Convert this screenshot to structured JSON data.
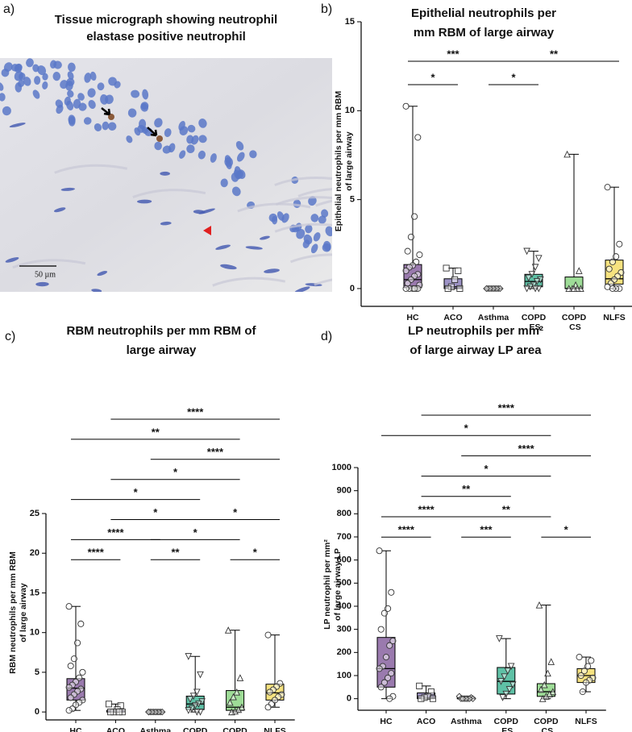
{
  "micrograph": {
    "label": "a)",
    "title": [
      "Tissue micrograph showing neutrophil",
      "elastase positive neutrophil"
    ],
    "scale_label": "50 µm"
  },
  "chart_data": [
    {
      "type": "box",
      "label": "b)",
      "title": [
        "Epithelial neutrophils per",
        "mm RBM of large airway"
      ],
      "ylabel": [
        "Epithelial neutrophils per mm RBM",
        "of large airway"
      ],
      "categories": [
        "HC",
        "ACO",
        "Asthma",
        "COPD ES",
        "COPD CS",
        "NLFS"
      ],
      "colors": [
        "#9a7aae",
        "#9d93c6",
        "#b0b0b0",
        "#5fc1a6",
        "#9edc97",
        "#f6e27f"
      ],
      "markers": [
        "circle",
        "square",
        "diamond",
        "triangle-down",
        "triangle",
        "circle"
      ],
      "ylim": [
        -1,
        15
      ],
      "yticks": [
        0,
        5,
        10,
        15
      ],
      "boxes": [
        {
          "min": 0,
          "q1": 0.05,
          "median": 0.5,
          "q3": 1.35,
          "max": 10.25,
          "points": [
            10.25,
            8.5,
            4.05,
            2.9,
            2.1,
            1.9,
            1.5,
            1.3,
            1.2,
            1.0,
            0.8,
            0.7,
            0.5,
            0.3,
            0.2,
            0,
            0,
            0,
            0,
            0,
            0
          ]
        },
        {
          "min": 0,
          "q1": 0,
          "median": 0.1,
          "q3": 0.55,
          "max": 1.15,
          "points": [
            1.15,
            1.0,
            0.5,
            0.1,
            0,
            0
          ]
        },
        {
          "min": 0,
          "q1": 0,
          "median": 0,
          "q3": 0,
          "max": 0,
          "points": [
            0,
            0,
            0,
            0,
            0,
            0,
            0,
            0,
            0,
            0
          ]
        },
        {
          "min": 0,
          "q1": 0.1,
          "median": 0.4,
          "q3": 0.8,
          "max": 2.1,
          "points": [
            2.1,
            1.7,
            1.2,
            0.8,
            0.6,
            0.5,
            0.4,
            0.2,
            0.1,
            0,
            0,
            0
          ]
        },
        {
          "min": 0,
          "q1": 0,
          "median": 0,
          "q3": 0.65,
          "max": 7.55,
          "points": [
            7.55,
            1.0,
            0.2,
            0,
            0,
            0,
            0,
            0
          ]
        },
        {
          "min": 0,
          "q1": 0.25,
          "median": 0.55,
          "q3": 1.6,
          "max": 5.7,
          "points": [
            5.7,
            2.5,
            1.8,
            1.5,
            1.1,
            0.9,
            0.7,
            0.5,
            0.3,
            0.1,
            0,
            0,
            0
          ]
        }
      ],
      "significance": [
        [
          {
            "between": [
              "HC",
              "Asthma"
            ],
            "label": "***"
          },
          {
            "between": [
              "Asthma",
              "NLFS"
            ],
            "label": "**"
          }
        ],
        [
          {
            "between": [
              "HC",
              "ACO"
            ],
            "label": "*"
          },
          {
            "between": [
              "Asthma",
              "COPD ES"
            ],
            "label": "*"
          }
        ]
      ]
    },
    {
      "type": "box",
      "label": "c)",
      "title": [
        "RBM neutrophils per mm RBM of",
        "large airway"
      ],
      "ylabel": [
        "RBM neutrophils per mm RBM",
        "of large airway"
      ],
      "categories": [
        "HC",
        "ACO",
        "Asthma",
        "COPD ES",
        "COPD CS",
        "NLFS"
      ],
      "colors": [
        "#9a7aae",
        "#9d93c6",
        "#b0b0b0",
        "#5fc1a6",
        "#9edc97",
        "#f6e27f"
      ],
      "markers": [
        "circle",
        "square",
        "diamond",
        "triangle-down",
        "triangle",
        "circle"
      ],
      "ylim": [
        -1,
        25
      ],
      "yticks": [
        0,
        5,
        10,
        15,
        20,
        25
      ],
      "boxes": [
        {
          "min": 0.2,
          "q1": 1.5,
          "median": 3.0,
          "q3": 4.2,
          "max": 13.3,
          "points": [
            13.3,
            11.1,
            8.7,
            6.7,
            5.8,
            5.0,
            4.3,
            3.8,
            3.4,
            3.1,
            2.9,
            2.6,
            2.2,
            1.8,
            1.5,
            1.2,
            0.9,
            0.4,
            0.2
          ]
        },
        {
          "min": 0,
          "q1": 0,
          "median": 0,
          "q3": 0.2,
          "max": 1.0,
          "points": [
            1.0,
            0.8,
            0.3,
            0,
            0,
            0,
            0
          ]
        },
        {
          "min": 0,
          "q1": 0,
          "median": 0,
          "q3": 0,
          "max": 0,
          "points": [
            0,
            0,
            0,
            0,
            0,
            0,
            0,
            0,
            0,
            0
          ]
        },
        {
          "min": 0,
          "q1": 0.3,
          "median": 1.0,
          "q3": 2.0,
          "max": 7.0,
          "points": [
            7.0,
            4.7,
            2.5,
            2.0,
            1.6,
            1.3,
            1.0,
            0.8,
            0.4,
            0.2,
            0,
            0
          ]
        },
        {
          "min": 0,
          "q1": 0.2,
          "median": 0.6,
          "q3": 2.7,
          "max": 10.3,
          "points": [
            10.3,
            4.3,
            2.5,
            1.9,
            1.2,
            0.6,
            0.3,
            0.1,
            0
          ]
        },
        {
          "min": 0.6,
          "q1": 1.5,
          "median": 2.4,
          "q3": 3.5,
          "max": 9.7,
          "points": [
            9.7,
            3.6,
            3.2,
            2.8,
            2.5,
            2.2,
            1.9,
            1.5,
            1.0,
            0.6
          ]
        }
      ],
      "significance": [
        [
          {
            "between": [
              "ACO",
              "NLFS"
            ],
            "label": "****"
          }
        ],
        [
          {
            "between": [
              "HC",
              "COPD CS"
            ],
            "label": "**"
          }
        ],
        [
          {
            "between": [
              "Asthma",
              "NLFS"
            ],
            "label": "****"
          }
        ],
        [
          {
            "between": [
              "ACO",
              "COPD CS"
            ],
            "label": "*"
          }
        ],
        [
          {
            "between": [
              "HC",
              "COPD ES"
            ],
            "label": "*"
          }
        ],
        [
          {
            "between": [
              "ACO",
              "COPD ES"
            ],
            "label": "*"
          },
          {
            "between": [
              "COPD ES",
              "NLFS"
            ],
            "label": "*"
          }
        ],
        [
          {
            "between": [
              "HC",
              "Asthma"
            ],
            "label": "****"
          },
          {
            "between": [
              "Asthma",
              "COPD CS"
            ],
            "label": "*"
          }
        ],
        [
          {
            "between": [
              "HC",
              "ACO"
            ],
            "label": "****"
          },
          {
            "between": [
              "Asthma",
              "COPD ES"
            ],
            "label": "**"
          },
          {
            "between": [
              "COPD CS",
              "NLFS"
            ],
            "label": "*"
          }
        ]
      ]
    },
    {
      "type": "box",
      "label": "d)",
      "title": [
        "LP neutrophils per mm²",
        "of large airway LP area"
      ],
      "ylabel": [
        "LP neutrophil per mm²",
        "of large airway LP"
      ],
      "categories": [
        "HC",
        "ACO",
        "Asthma",
        "COPD ES",
        "COPD CS",
        "NLFS"
      ],
      "colors": [
        "#9a7aae",
        "#9d93c6",
        "#b0b0b0",
        "#5fc1a6",
        "#9edc97",
        "#f6e27f"
      ],
      "markers": [
        "circle",
        "square",
        "diamond",
        "triangle-down",
        "triangle",
        "circle"
      ],
      "ylim": [
        -50,
        1000
      ],
      "yticks": [
        0,
        100,
        200,
        300,
        400,
        500,
        600,
        700,
        800,
        900,
        1000
      ],
      "boxes": [
        {
          "min": 0,
          "q1": 50,
          "median": 130,
          "q3": 265,
          "max": 640,
          "points": [
            640,
            460,
            390,
            370,
            300,
            250,
            230,
            180,
            140,
            130,
            110,
            90,
            70,
            50,
            10,
            0
          ]
        },
        {
          "min": 0,
          "q1": 0,
          "median": 5,
          "q3": 25,
          "max": 55,
          "points": [
            55,
            30,
            10,
            5,
            0,
            0
          ]
        },
        {
          "min": 0,
          "q1": 0,
          "median": 0,
          "q3": 5,
          "max": 10,
          "points": [
            10,
            5,
            0,
            0,
            0,
            0,
            0,
            0,
            0
          ]
        },
        {
          "min": 0,
          "q1": 20,
          "median": 75,
          "q3": 135,
          "max": 260,
          "points": [
            260,
            140,
            120,
            95,
            75,
            60,
            40,
            20,
            5
          ]
        },
        {
          "min": 0,
          "q1": 10,
          "median": 30,
          "q3": 65,
          "max": 405,
          "points": [
            405,
            160,
            110,
            60,
            40,
            30,
            20,
            10,
            0
          ]
        },
        {
          "min": 30,
          "q1": 70,
          "median": 100,
          "q3": 130,
          "max": 180,
          "points": [
            180,
            165,
            140,
            120,
            100,
            90,
            80,
            70,
            30
          ]
        }
      ],
      "significance": [
        [
          {
            "between": [
              "ACO",
              "NLFS"
            ],
            "label": "****"
          }
        ],
        [
          {
            "between": [
              "HC",
              "COPD CS"
            ],
            "label": "*"
          }
        ],
        [
          {
            "between": [
              "Asthma",
              "NLFS"
            ],
            "label": "****"
          }
        ],
        [
          {
            "between": [
              "ACO",
              "COPD CS"
            ],
            "label": "*"
          }
        ],
        [
          {
            "between": [
              "ACO",
              "COPD ES"
            ],
            "label": "**"
          }
        ],
        [
          {
            "between": [
              "HC",
              "Asthma"
            ],
            "label": "****"
          },
          {
            "between": [
              "Asthma",
              "COPD CS"
            ],
            "label": "**"
          }
        ],
        [
          {
            "between": [
              "HC",
              "ACO"
            ],
            "label": "****"
          },
          {
            "between": [
              "Asthma",
              "COPD ES"
            ],
            "label": "***"
          },
          {
            "between": [
              "COPD CS",
              "NLFS"
            ],
            "label": "*"
          }
        ]
      ]
    }
  ]
}
